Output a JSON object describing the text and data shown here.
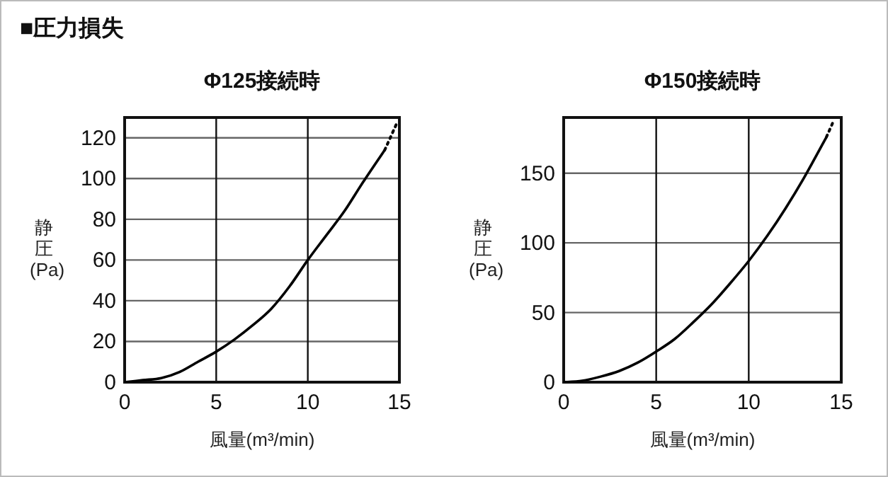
{
  "chart_data": [
    {
      "type": "line",
      "annotations": [
        "■圧力損失"
      ],
      "title": "Φ125接続時",
      "xlabel": "風量(m³/min)",
      "ylabel": "静圧(Pa)",
      "xlim": [
        0,
        15
      ],
      "ylim": [
        0,
        130
      ],
      "xticks": [
        0,
        5,
        10,
        15
      ],
      "yticks": [
        0,
        20,
        40,
        60,
        80,
        100,
        120
      ],
      "grid": true,
      "marker": "none",
      "series": [
        {
          "color": "#000000",
          "line_style": "solid",
          "x": [
            0,
            1,
            2,
            3,
            4,
            5,
            6,
            7,
            8,
            9,
            10,
            11,
            12,
            13,
            14.2
          ],
          "values": [
            0,
            1,
            2,
            5,
            10,
            15,
            21,
            28,
            36,
            47,
            60,
            72,
            84,
            98,
            114
          ]
        },
        {
          "color": "#000000",
          "line_style": "dotted",
          "x": [
            14.2,
            14.5,
            14.9
          ],
          "values": [
            114,
            120,
            128
          ]
        }
      ]
    },
    {
      "type": "line",
      "title": "Φ150接続時",
      "xlabel": "風量(m³/min)",
      "ylabel": "静圧(Pa)",
      "xlim": [
        0,
        15
      ],
      "ylim": [
        0,
        190
      ],
      "xticks": [
        0,
        5,
        10,
        15
      ],
      "yticks": [
        0,
        50,
        100,
        150
      ],
      "grid": true,
      "marker": "none",
      "series": [
        {
          "color": "#000000",
          "line_style": "solid",
          "x": [
            0,
            1,
            2,
            3,
            4,
            5,
            6,
            7,
            8,
            9,
            10,
            11,
            12,
            13,
            14.2
          ],
          "values": [
            0,
            1,
            4,
            8,
            14,
            22,
            31,
            43,
            56,
            71,
            87,
            105,
            125,
            147,
            176
          ]
        },
        {
          "color": "#000000",
          "line_style": "dotted",
          "x": [
            14.2,
            14.6
          ],
          "values": [
            176,
            188
          ]
        }
      ]
    }
  ]
}
